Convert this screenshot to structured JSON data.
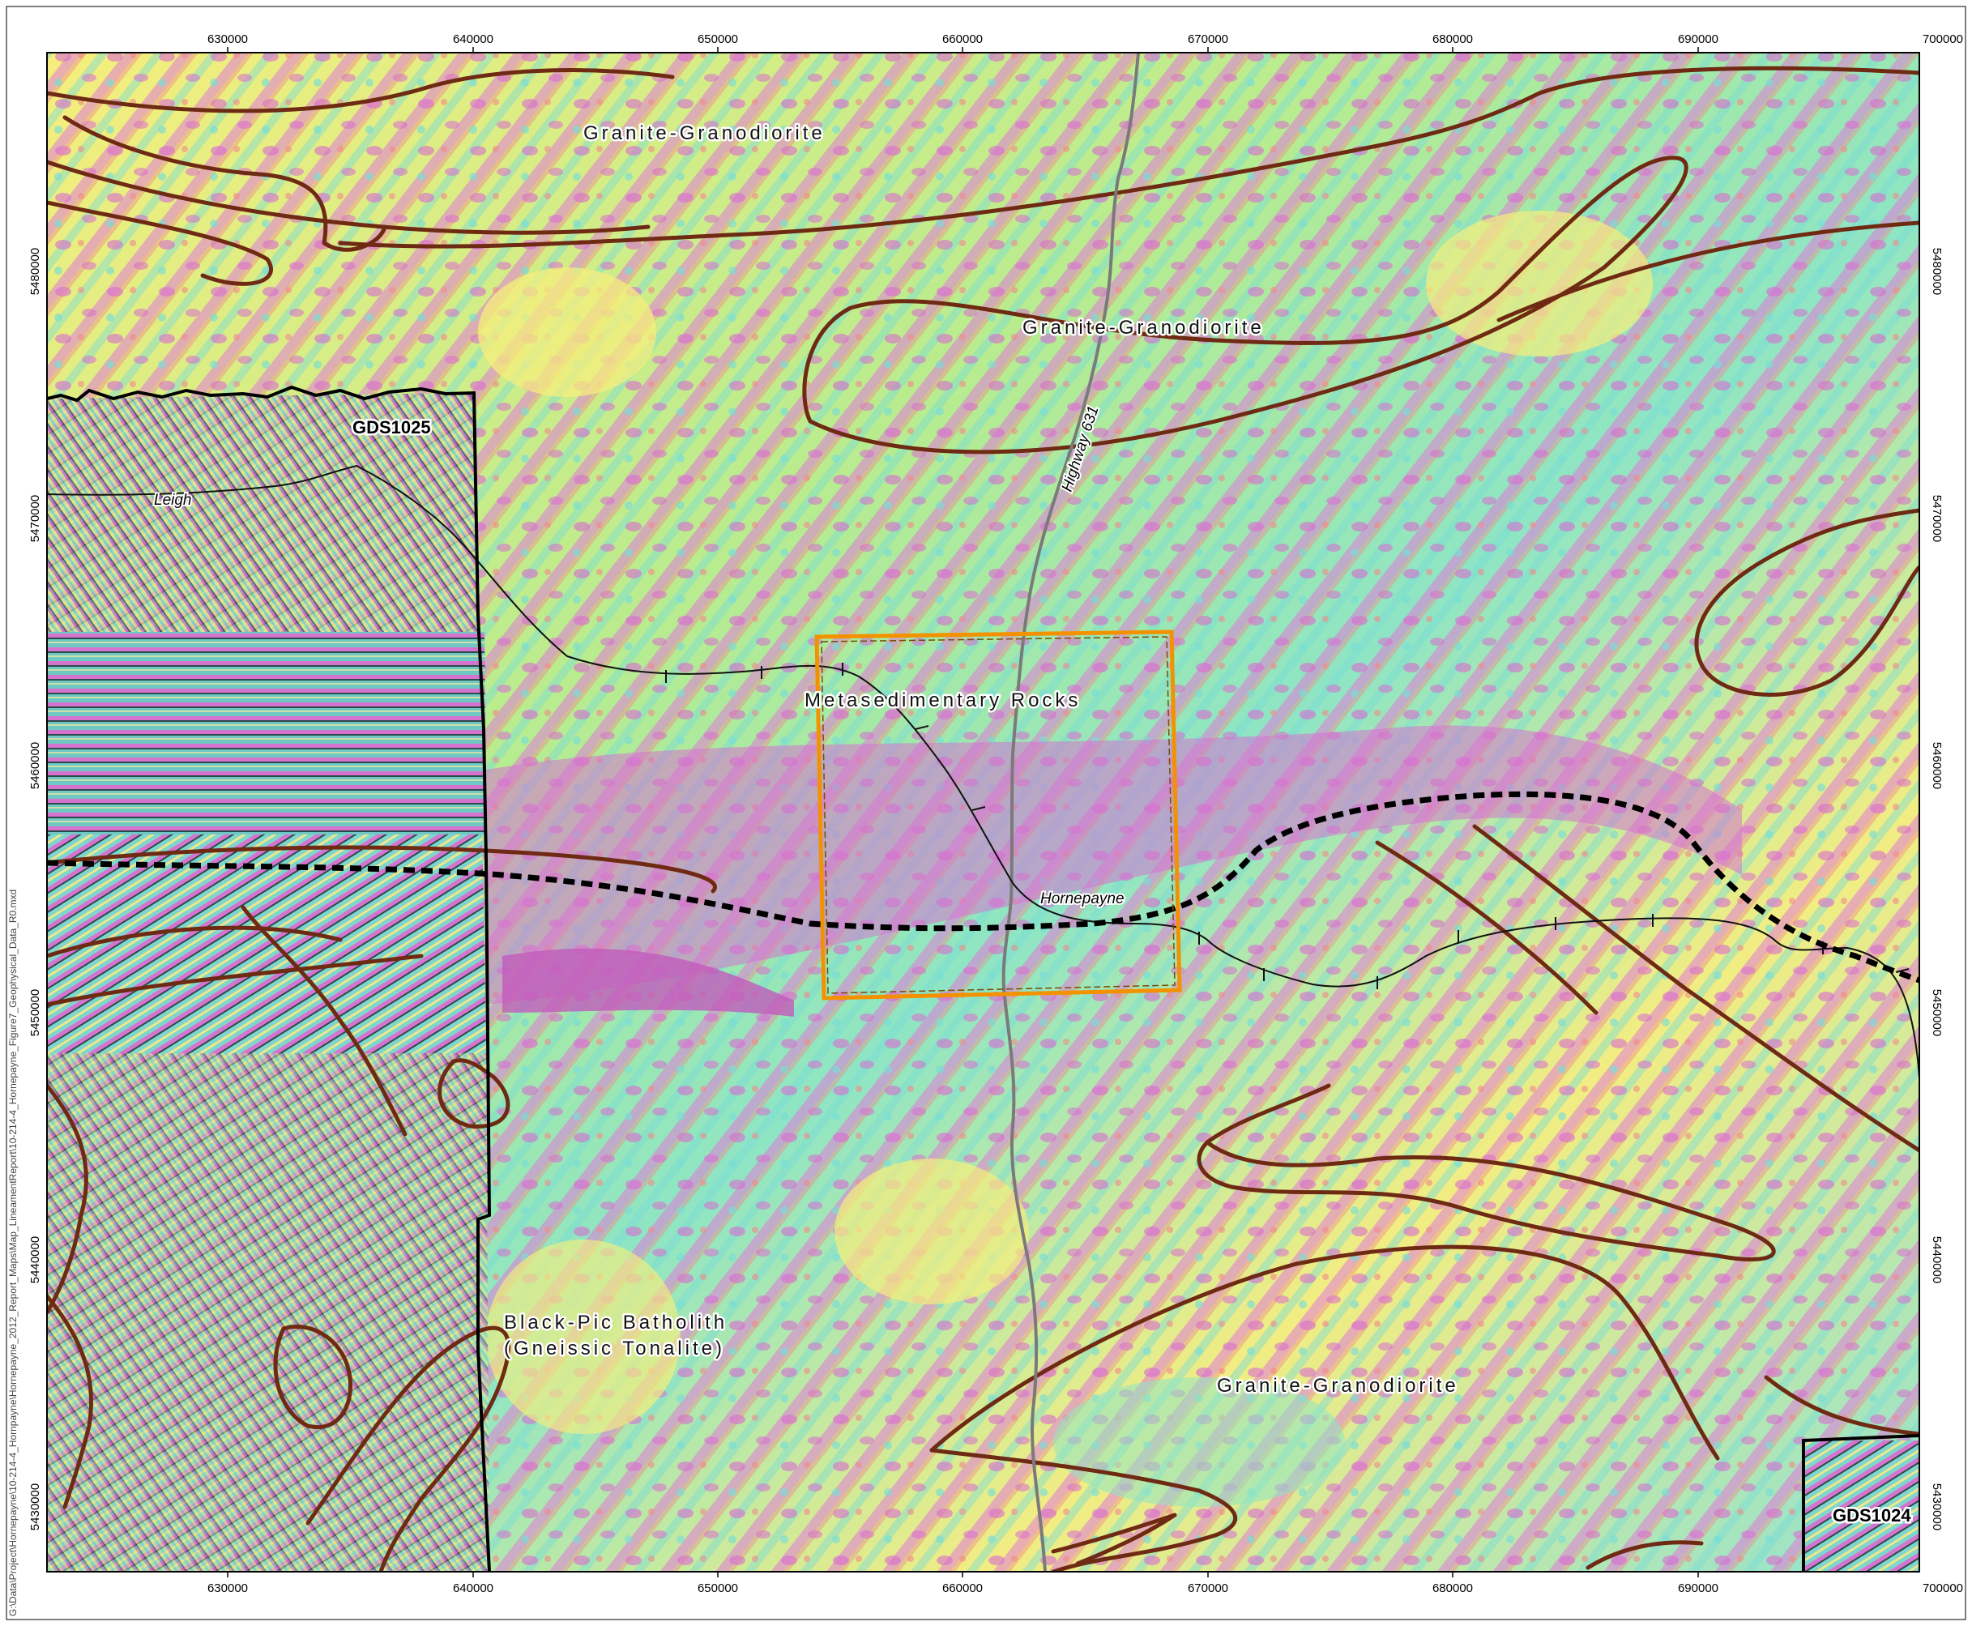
{
  "map": {
    "file_path": "G:\\Data\\Project\\Hornepayne\\10-214-4_Hornpayne\\Hornepayne_2012_Report_Maps\\Map_LineamentReport\\10-214-4_Hornepayne_Figure7_Geophysical_Data_R0.mxd",
    "easting_ticks": [
      "630000",
      "640000",
      "650000",
      "660000",
      "670000",
      "680000",
      "690000",
      "700000"
    ],
    "northing_ticks": [
      "5480000",
      "5470000",
      "5460000",
      "5450000",
      "5440000",
      "5430000"
    ],
    "unit_labels": {
      "granite_north": "Granite-Granodiorite",
      "granite_northeast": "Granite-Granodiorite",
      "metasedimentary": "Metasedimentary Rocks",
      "batholith_line1": "Black-Pic Batholith",
      "batholith_line2": "(Gneissic Tonalite)",
      "granite_south": "Granite-Granodiorite"
    },
    "grid_labels": {
      "west": "GDS1025",
      "southeast": "GDS1024"
    },
    "place_labels": {
      "leigh": "Leigh",
      "hornepayne": "Hornepayne",
      "highway": "Highway 631"
    },
    "colors": {
      "geology_contact": "#6e2a12",
      "study_area_outline": "#f39200",
      "highway": "#7a7a7a",
      "railway": "#111111",
      "deformation_zone": "#000000",
      "magnetic_high": "#e079d6",
      "magnetic_mid_high": "#f08a8a",
      "magnetic_mid": "#f6ee7c",
      "magnetic_mid_low": "#a7ea8a",
      "magnetic_low": "#78ddd6"
    }
  }
}
